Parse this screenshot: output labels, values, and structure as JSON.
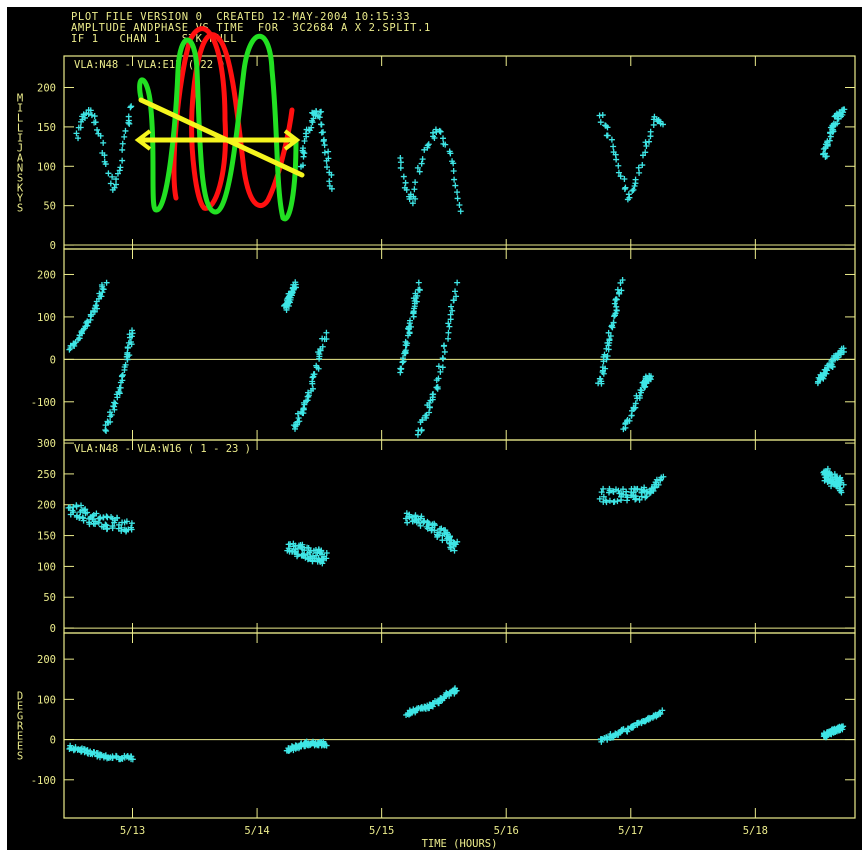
{
  "header": {
    "line1": "PLOT FILE VERSION 0  CREATED 12-MAY-2004 10:15:33",
    "line2": "AMPLTUDE ANDPHASE VS TIME  FOR  3C2684 A X 2.SPLIT.1",
    "line3": "IF 1   CHAN 1   STK RULL"
  },
  "colors": {
    "background": "#000000",
    "axes": "#ecec8c",
    "points": "#3fe6e6",
    "annotation_green": "#22e022",
    "annotation_red": "#ff1010",
    "annotation_yellow": "#f5f51e"
  },
  "chart_data": [
    {
      "type": "scatter",
      "panel_label": "VLA:N48 - VLA:E12 (     22 )",
      "ylabel": "MILLIJANSKYS",
      "ylim": [
        -5,
        240
      ],
      "yticks": [
        0,
        50,
        100,
        150,
        200
      ],
      "series": [
        {
          "kind": "line",
          "points": [
            [
              12.55,
              140
            ],
            [
              12.6,
              160
            ],
            [
              12.65,
              170
            ],
            [
              12.72,
              150
            ],
            [
              12.78,
              110
            ],
            [
              12.85,
              70
            ],
            [
              12.9,
              95
            ],
            [
              12.95,
              150
            ],
            [
              13.0,
              175
            ]
          ]
        },
        {
          "kind": "line",
          "points": [
            [
              14.35,
              100
            ],
            [
              14.4,
              140
            ],
            [
              14.45,
              170
            ],
            [
              14.5,
              165
            ],
            [
              14.55,
              120
            ],
            [
              14.6,
              70
            ]
          ]
        },
        {
          "kind": "line",
          "points": [
            [
              15.15,
              110
            ],
            [
              15.2,
              70
            ],
            [
              15.25,
              50
            ],
            [
              15.3,
              100
            ],
            [
              15.38,
              130
            ],
            [
              15.45,
              150
            ],
            [
              15.52,
              130
            ],
            [
              15.58,
              90
            ],
            [
              15.62,
              40
            ]
          ]
        },
        {
          "kind": "line",
          "points": [
            [
              16.75,
              165
            ],
            [
              16.82,
              140
            ],
            [
              16.9,
              100
            ],
            [
              16.98,
              60
            ],
            [
              17.05,
              80
            ],
            [
              17.12,
              125
            ],
            [
              17.2,
              160
            ],
            [
              17.25,
              150
            ]
          ]
        },
        {
          "kind": "line",
          "points": [
            [
              18.55,
              110
            ],
            [
              18.6,
              140
            ],
            [
              18.65,
              160
            ],
            [
              18.7,
              170
            ]
          ]
        }
      ]
    },
    {
      "type": "scatter",
      "panel_label": "",
      "ylabel": "",
      "ylim": [
        -190,
        260
      ],
      "yticks": [
        -100,
        0,
        100,
        200
      ],
      "series": [
        {
          "kind": "line",
          "points": [
            [
              12.5,
              20
            ],
            [
              12.65,
              90
            ],
            [
              12.78,
              175
            ]
          ]
        },
        {
          "kind": "line",
          "points": [
            [
              12.78,
              -170
            ],
            [
              12.88,
              -90
            ],
            [
              12.95,
              0
            ],
            [
              13.0,
              65
            ]
          ]
        },
        {
          "kind": "line",
          "points": [
            [
              14.23,
              120
            ],
            [
              14.3,
              175
            ]
          ]
        },
        {
          "kind": "line",
          "points": [
            [
              14.3,
              -165
            ],
            [
              14.42,
              -80
            ],
            [
              14.55,
              60
            ]
          ]
        },
        {
          "kind": "line",
          "points": [
            [
              15.15,
              -30
            ],
            [
              15.3,
              175
            ]
          ]
        },
        {
          "kind": "line",
          "points": [
            [
              15.3,
              -175
            ],
            [
              15.45,
              -60
            ],
            [
              15.6,
              175
            ]
          ]
        },
        {
          "kind": "line",
          "points": [
            [
              16.75,
              -60
            ],
            [
              16.92,
              180
            ]
          ]
        },
        {
          "kind": "line",
          "points": [
            [
              16.95,
              -170
            ],
            [
              17.1,
              -60
            ],
            [
              17.15,
              -40
            ]
          ]
        },
        {
          "kind": "line",
          "points": [
            [
              18.5,
              -55
            ],
            [
              18.7,
              25
            ]
          ]
        }
      ]
    },
    {
      "type": "scatter",
      "panel_label": "VLA:N48 - VLA:W16 ( 1 - 23 )",
      "ylabel": "",
      "ylim": [
        -8,
        305
      ],
      "yticks": [
        0,
        50,
        100,
        150,
        200,
        250,
        300
      ],
      "series": [
        {
          "kind": "band",
          "points": [
            [
              12.5,
              195
            ],
            [
              12.65,
              180
            ],
            [
              12.8,
              170
            ],
            [
              13.0,
              165
            ]
          ],
          "spread": 22
        },
        {
          "kind": "band",
          "points": [
            [
              14.25,
              135
            ],
            [
              14.4,
              120
            ],
            [
              14.55,
              115
            ]
          ],
          "spread": 22
        },
        {
          "kind": "band",
          "points": [
            [
              15.2,
              180
            ],
            [
              15.35,
              170
            ],
            [
              15.5,
              150
            ],
            [
              15.6,
              130
            ]
          ],
          "spread": 20
        },
        {
          "kind": "band",
          "points": [
            [
              16.75,
              215
            ],
            [
              16.95,
              215
            ],
            [
              17.1,
              220
            ],
            [
              17.25,
              235
            ]
          ],
          "spread": 22
        },
        {
          "kind": "band",
          "points": [
            [
              18.55,
              250
            ],
            [
              18.7,
              230
            ]
          ],
          "spread": 22
        }
      ]
    },
    {
      "type": "scatter",
      "panel_label": "",
      "ylabel": "DEGREES",
      "ylim": [
        -195,
        265
      ],
      "yticks": [
        -100,
        0,
        100,
        200
      ],
      "series": [
        {
          "kind": "band",
          "points": [
            [
              12.5,
              -20
            ],
            [
              12.65,
              -30
            ],
            [
              12.8,
              -45
            ],
            [
              13.0,
              -45
            ]
          ],
          "spread": 10
        },
        {
          "kind": "band",
          "points": [
            [
              14.25,
              -25
            ],
            [
              14.4,
              -10
            ],
            [
              14.55,
              -10
            ]
          ],
          "spread": 10
        },
        {
          "kind": "band",
          "points": [
            [
              15.2,
              65
            ],
            [
              15.4,
              85
            ],
            [
              15.6,
              125
            ]
          ],
          "spread": 10
        },
        {
          "kind": "band",
          "points": [
            [
              16.75,
              -5
            ],
            [
              17.0,
              30
            ],
            [
              17.25,
              70
            ]
          ],
          "spread": 10
        },
        {
          "kind": "band",
          "points": [
            [
              18.55,
              10
            ],
            [
              18.7,
              30
            ]
          ],
          "spread": 10
        }
      ]
    }
  ],
  "x_axis": {
    "label": "TIME (HOURS)",
    "xlim": [
      12.45,
      18.8
    ],
    "ticks": [
      {
        "value": 13,
        "label": "5/13"
      },
      {
        "value": 14,
        "label": "5/14"
      },
      {
        "value": 15,
        "label": "5/15"
      },
      {
        "value": 16,
        "label": "5/16"
      },
      {
        "value": 17,
        "label": "5/17"
      },
      {
        "value": 18,
        "label": "5/18"
      }
    ]
  }
}
